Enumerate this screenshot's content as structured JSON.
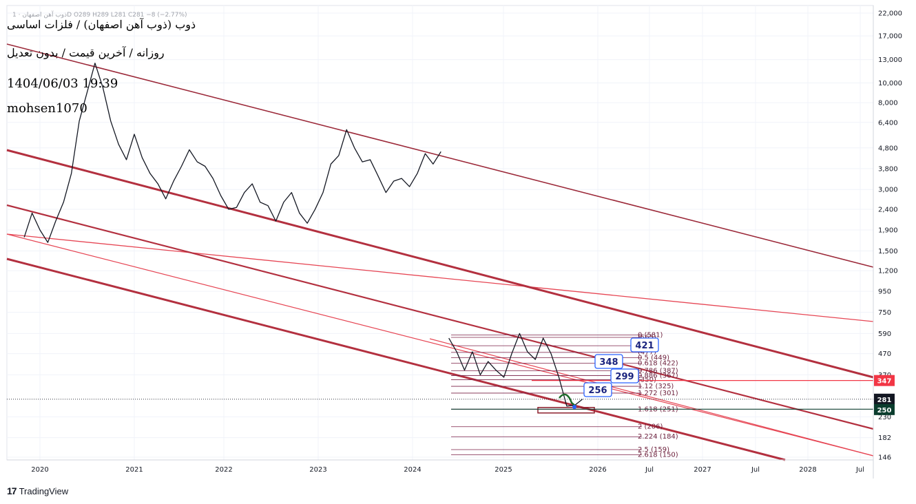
{
  "header": {
    "ohlc_line": "ذوب آهن اصفهان · 1D  O289 H289 L281 C281 −8 (−2.77%)",
    "title": "ذوب (ذوب آهن اصفهان) / فلزات اساسی",
    "subtitle": "روزانه / آخرین قیمت / بدون تعدیل",
    "datetime": "1404/06/03 19:39",
    "author": "mohsen1070"
  },
  "footer": {
    "brand": "TradingView"
  },
  "chart_data": {
    "type": "line",
    "y_scale": "log",
    "ylim": [
      136,
      24000
    ],
    "x_labels": [
      "2020",
      "2021",
      "2022",
      "2023",
      "2024",
      "2025",
      "2026",
      "Jul",
      "2027",
      "Jul",
      "2028",
      "Jul"
    ],
    "y_ticks": [
      22000,
      17000,
      13000,
      10000,
      8000,
      6400,
      4800,
      3800,
      3000,
      2400,
      1900,
      1500,
      1200,
      950,
      750,
      590,
      470,
      370,
      230,
      182,
      146
    ],
    "y_tick_labels": [
      "22,000",
      "17,000",
      "13,000",
      "10,000",
      "8,000",
      "6,400",
      "4,800",
      "3,800",
      "3,000",
      "2,400",
      "1,900",
      "1,500",
      "1,200",
      "950",
      "750",
      "590",
      "470",
      "370",
      "230",
      "182",
      "146"
    ],
    "price_tags": [
      {
        "value": 347,
        "label": "347",
        "color": "#f23645"
      },
      {
        "value": 281,
        "label": "281",
        "color": "#131722"
      },
      {
        "value": 250,
        "label": "250",
        "color": "#0b3d2e"
      }
    ],
    "fib_levels": [
      {
        "label": "0 (581)",
        "value": 581
      },
      {
        "label": "(565)",
        "value": 565
      },
      {
        "label": "(514)",
        "value": 514
      },
      {
        "label": "(477)",
        "value": 477
      },
      {
        "label": "0.5 (449)",
        "value": 449
      },
      {
        "label": "0.618 (422)",
        "value": 422
      },
      {
        "label": "0.786 (387)",
        "value": 387
      },
      {
        "label": "0.886 (367)",
        "value": 367
      },
      {
        "label": "(350)",
        "value": 350
      },
      {
        "label": "1.12 (325)",
        "value": 325
      },
      {
        "label": "1.272 (301)",
        "value": 301
      },
      {
        "label": "1.618 (251)",
        "value": 251
      },
      {
        "label": "2 (206)",
        "value": 206
      },
      {
        "label": "2.224 (184)",
        "value": 184
      },
      {
        "label": "2.5 (159)",
        "value": 159
      },
      {
        "label": "2.618 (150)",
        "value": 150
      }
    ],
    "callouts": [
      {
        "label": "421",
        "value": 421
      },
      {
        "label": "348",
        "value": 348
      },
      {
        "label": "299",
        "value": 299
      },
      {
        "label": "256",
        "value": 256
      }
    ],
    "price_series": [
      [
        "2019-11",
        1750
      ],
      [
        "2019-12",
        2300
      ],
      [
        "2020-01",
        1900
      ],
      [
        "2020-02",
        1650
      ],
      [
        "2020-03",
        2100
      ],
      [
        "2020-04",
        2600
      ],
      [
        "2020-05",
        3600
      ],
      [
        "2020-06",
        6500
      ],
      [
        "2020-07",
        9000
      ],
      [
        "2020-08",
        12500
      ],
      [
        "2020-09",
        9500
      ],
      [
        "2020-10",
        6500
      ],
      [
        "2020-11",
        5000
      ],
      [
        "2020-12",
        4200
      ],
      [
        "2021-01",
        5600
      ],
      [
        "2021-02",
        4300
      ],
      [
        "2021-03",
        3600
      ],
      [
        "2021-04",
        3200
      ],
      [
        "2021-05",
        2700
      ],
      [
        "2021-06",
        3300
      ],
      [
        "2021-07",
        3900
      ],
      [
        "2021-08",
        4700
      ],
      [
        "2021-09",
        4100
      ],
      [
        "2021-10",
        3900
      ],
      [
        "2021-11",
        3400
      ],
      [
        "2021-12",
        2800
      ],
      [
        "2022-01",
        2400
      ],
      [
        "2022-02",
        2450
      ],
      [
        "2022-03",
        2900
      ],
      [
        "2022-04",
        3200
      ],
      [
        "2022-05",
        2600
      ],
      [
        "2022-06",
        2500
      ],
      [
        "2022-07",
        2100
      ],
      [
        "2022-08",
        2600
      ],
      [
        "2022-09",
        2900
      ],
      [
        "2022-10",
        2300
      ],
      [
        "2022-11",
        2050
      ],
      [
        "2022-12",
        2400
      ],
      [
        "2023-01",
        2900
      ],
      [
        "2023-02",
        4000
      ],
      [
        "2023-03",
        4400
      ],
      [
        "2023-04",
        5900
      ],
      [
        "2023-05",
        4800
      ],
      [
        "2023-06",
        4100
      ],
      [
        "2023-07",
        4200
      ],
      [
        "2023-08",
        3500
      ],
      [
        "2023-09",
        2900
      ],
      [
        "2023-10",
        3300
      ],
      [
        "2023-11",
        3400
      ],
      [
        "2023-12",
        3100
      ],
      [
        "2024-01",
        3600
      ],
      [
        "2024-02",
        4500
      ],
      [
        "2024-03",
        4000
      ],
      [
        "2024-04",
        4600
      ],
      [
        "2024-05",
        560
      ],
      [
        "2024-06",
        480
      ],
      [
        "2024-07",
        390
      ],
      [
        "2024-08",
        480
      ],
      [
        "2024-09",
        370
      ],
      [
        "2024-10",
        430
      ],
      [
        "2024-11",
        390
      ],
      [
        "2024-12",
        360
      ],
      [
        "2025-01",
        470
      ],
      [
        "2025-02",
        590
      ],
      [
        "2025-03",
        480
      ],
      [
        "2025-04",
        440
      ],
      [
        "2025-05",
        560
      ],
      [
        "2025-06",
        470
      ],
      [
        "2025-07",
        360
      ],
      [
        "2025-08",
        260
      ],
      [
        "2025-09",
        262
      ],
      [
        "2025-10",
        281
      ]
    ]
  }
}
